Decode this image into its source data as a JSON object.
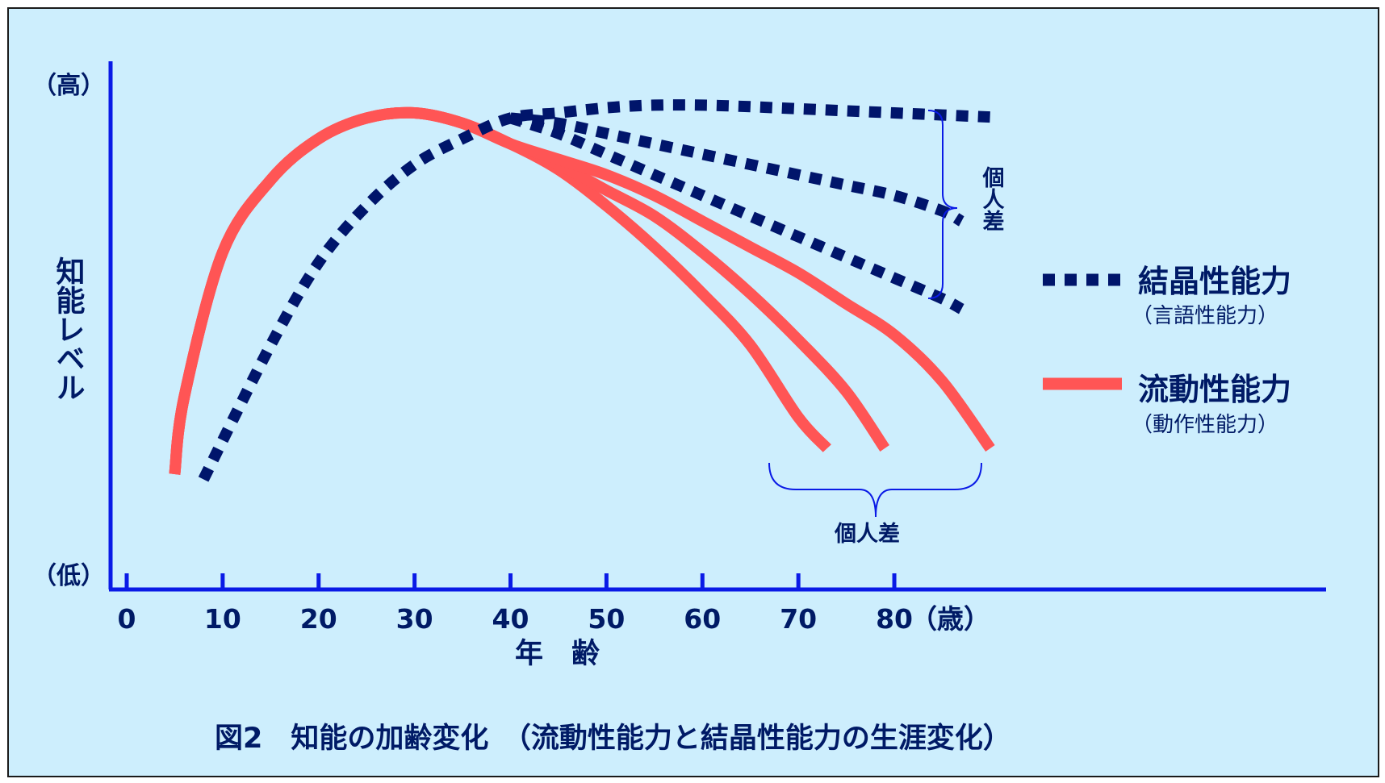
{
  "chart_data": {
    "type": "line",
    "title": "図2　知能の加齢変化　（流動性能力と結晶性能力の生涯変化）",
    "xlabel": "年　齢",
    "ylabel": "知能レベル",
    "y_high_label": "（高）",
    "y_low_label": "（低）",
    "x_unit_label": "（歳）",
    "xlim": [
      0,
      125
    ],
    "ylim": [
      0,
      100
    ],
    "x_ticks": [
      0,
      10,
      20,
      30,
      40,
      50,
      60,
      70,
      80
    ],
    "x_tick_labels": [
      "0",
      "10",
      "20",
      "30",
      "40",
      "50",
      "60",
      "70",
      "80"
    ],
    "individual_difference_label": "個人差",
    "legend": {
      "position": "right",
      "items": [
        {
          "key": "crystallized",
          "label": "結晶性能力",
          "sub": "（言語性能力）",
          "color": "#00156b",
          "style": "dotted"
        },
        {
          "key": "fluid",
          "label": "流動性能力",
          "sub": "（動作性能力）",
          "color": "#ff5555",
          "style": "solid"
        }
      ]
    },
    "series": [
      {
        "group": "fluid",
        "color": "#ff5555",
        "x": [
          5,
          6,
          10,
          15,
          20,
          25,
          30,
          35,
          40,
          45,
          50,
          55,
          60,
          65,
          70,
          73
        ],
        "y": [
          20,
          35,
          63,
          77,
          85,
          89,
          90,
          88,
          84,
          79,
          72,
          64,
          55,
          45,
          31,
          25
        ]
      },
      {
        "group": "fluid",
        "color": "#ff5555",
        "x": [
          5,
          6,
          10,
          15,
          20,
          25,
          30,
          35,
          40,
          45,
          50,
          55,
          60,
          65,
          70,
          75,
          79
        ],
        "y": [
          20,
          35,
          63,
          77,
          85,
          89,
          90,
          88,
          84,
          80,
          75,
          70,
          63,
          55,
          46,
          36,
          25
        ]
      },
      {
        "group": "fluid",
        "color": "#ff5555",
        "x": [
          5,
          6,
          10,
          15,
          20,
          25,
          30,
          35,
          40,
          45,
          50,
          55,
          60,
          65,
          70,
          75,
          80,
          85,
          90
        ],
        "y": [
          20,
          35,
          63,
          77,
          85,
          89,
          90,
          88,
          84,
          81,
          78,
          74,
          69,
          64,
          59,
          53,
          47,
          38,
          25
        ]
      },
      {
        "group": "crystallized",
        "color": "#00156b",
        "x": [
          8,
          15,
          20,
          25,
          30,
          35,
          40,
          45,
          50,
          55,
          60,
          65,
          70,
          75,
          80,
          85,
          90
        ],
        "y": [
          19,
          45,
          61,
          72,
          80,
          85,
          89,
          90,
          91,
          91.5,
          91.5,
          91.2,
          90.8,
          90.4,
          90,
          89.6,
          89.2
        ]
      },
      {
        "group": "crystallized",
        "color": "#00156b",
        "x": [
          40,
          45,
          50,
          55,
          60,
          65,
          70,
          75,
          80,
          85,
          87
        ],
        "y": [
          89,
          88,
          86,
          84,
          82,
          80,
          78,
          76,
          74,
          71,
          69
        ]
      },
      {
        "group": "crystallized",
        "color": "#00156b",
        "x": [
          40,
          45,
          50,
          55,
          60,
          65,
          70,
          75,
          80,
          85,
          87
        ],
        "y": [
          89,
          86,
          82,
          78,
          74,
          70,
          66,
          62,
          58,
          54,
          52
        ]
      }
    ]
  }
}
